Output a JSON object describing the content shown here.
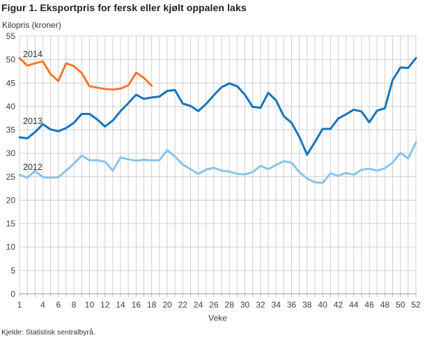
{
  "header": {
    "title": "Figur 1. Eksportpris for fersk eller kjølt oppalen laks",
    "subtitle": "Kilopris (kroner)"
  },
  "source": "Kjelde: Statistisk sentralbyrå.",
  "chart_data": {
    "type": "line",
    "title": "Figur 1. Eksportpris for fersk eller kjølt oppalen laks",
    "ylabel": "Kilopris (kroner)",
    "xlabel": "Veke",
    "xlim": [
      1,
      52
    ],
    "ylim": [
      0,
      55
    ],
    "grid": true,
    "x_ticks": [
      1,
      4,
      6,
      8,
      10,
      12,
      14,
      16,
      18,
      20,
      22,
      24,
      26,
      28,
      30,
      32,
      34,
      36,
      38,
      40,
      42,
      44,
      46,
      48,
      50,
      52
    ],
    "y_ticks": [
      0,
      5,
      10,
      15,
      20,
      25,
      30,
      35,
      40,
      45,
      50,
      55
    ],
    "legend_position": "inline-labels",
    "colors": {
      "s2014": "#f8772b",
      "s2013": "#1574bd",
      "s2012": "#8ac4e9",
      "grid": "#cfcfcf",
      "axis": "#999999",
      "tick_text": "#404040"
    },
    "series": [
      {
        "name": "2012",
        "color": "#8ac4e9",
        "start_week": 1,
        "values": [
          25.4,
          24.8,
          26.2,
          24.9,
          24.8,
          24.9,
          26.3,
          27.8,
          29.5,
          28.5,
          28.5,
          28.2,
          26.3,
          29.1,
          28.7,
          28.4,
          28.6,
          28.5,
          28.5,
          30.7,
          29.3,
          27.6,
          26.6,
          25.6,
          26.5,
          26.9,
          26.3,
          26.1,
          25.6,
          25.5,
          26.0,
          27.3,
          26.6,
          27.5,
          28.3,
          28.0,
          26.0,
          24.6,
          23.8,
          23.7,
          25.7,
          25.2,
          25.8,
          25.4,
          26.5,
          26.7,
          26.3,
          26.8,
          28.0,
          30.1,
          28.9,
          32.3
        ]
      },
      {
        "name": "2013",
        "color": "#1574bd",
        "start_week": 1,
        "values": [
          33.4,
          33.2,
          34.5,
          36.2,
          35.1,
          34.7,
          35.4,
          36.5,
          38.4,
          38.4,
          37.2,
          35.7,
          37.0,
          39.0,
          40.7,
          42.5,
          41.6,
          41.9,
          42.1,
          43.3,
          43.5,
          40.6,
          40.1,
          39.0,
          40.5,
          42.4,
          44.1,
          44.9,
          44.3,
          42.5,
          39.9,
          39.7,
          42.9,
          41.3,
          37.9,
          36.5,
          33.5,
          29.7,
          32.4,
          35.2,
          35.2,
          37.4,
          38.3,
          39.3,
          38.9,
          36.6,
          39.1,
          39.6,
          45.6,
          48.3,
          48.2,
          50.3
        ]
      },
      {
        "name": "2014",
        "color": "#f8772b",
        "start_week": 1,
        "values": [
          50.3,
          48.7,
          49.2,
          49.6,
          46.9,
          45.4,
          49.2,
          48.6,
          47.1,
          44.3,
          44.0,
          43.7,
          43.6,
          43.8,
          44.5,
          47.2,
          46.1,
          44.4
        ]
      }
    ]
  }
}
